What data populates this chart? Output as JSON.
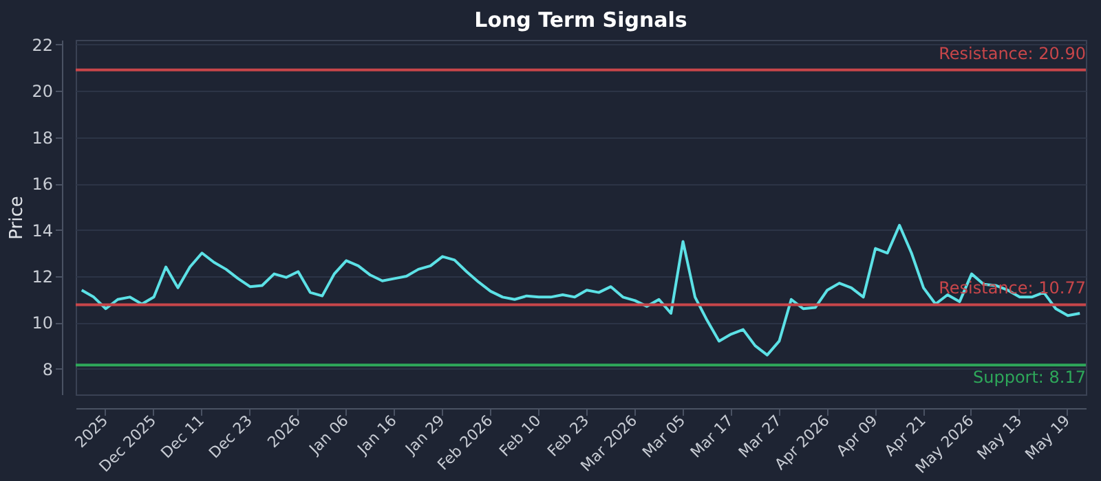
{
  "chart_data": {
    "type": "line",
    "title": "Long Term Signals",
    "ylabel": "Price",
    "categories": [
      null,
      null,
      "2025",
      null,
      null,
      null,
      "Dec 2025",
      null,
      null,
      null,
      "Dec 11",
      null,
      null,
      null,
      "Dec 23",
      null,
      null,
      null,
      "2026",
      null,
      null,
      null,
      "Jan 06",
      null,
      null,
      null,
      "Jan 16",
      null,
      null,
      null,
      "Jan 29",
      null,
      null,
      null,
      "Feb 2026",
      null,
      null,
      null,
      "Feb 10",
      null,
      null,
      null,
      "Feb 23",
      null,
      null,
      null,
      "Mar 2026",
      null,
      null,
      null,
      "Mar 05",
      null,
      null,
      null,
      "Mar 17",
      null,
      null,
      null,
      "Mar 27",
      null,
      null,
      null,
      "Apr 2026",
      null,
      null,
      null,
      "Apr 09",
      null,
      null,
      null,
      "Apr 21",
      null,
      null,
      null,
      "May 2026",
      null,
      null,
      null,
      "May 13",
      null,
      null,
      null,
      "May 19",
      null
    ],
    "series": [
      {
        "color": "#5ce1e6",
        "values": [
          11.4,
          11.1,
          10.6,
          11.0,
          11.1,
          10.8,
          11.1,
          12.4,
          11.5,
          12.4,
          13.0,
          12.6,
          12.3,
          11.9,
          11.55,
          11.6,
          12.1,
          11.95,
          12.2,
          11.3,
          11.15,
          12.1,
          12.67,
          12.45,
          12.05,
          11.8,
          11.9,
          12.0,
          12.3,
          12.45,
          12.85,
          12.7,
          12.2,
          11.75,
          11.35,
          11.1,
          11.0,
          11.15,
          11.1,
          11.1,
          11.2,
          11.1,
          11.4,
          11.3,
          11.55,
          11.1,
          10.95,
          10.7,
          11.0,
          10.4,
          13.5,
          11.1,
          10.1,
          9.2,
          9.5,
          9.7,
          9.0,
          8.6,
          9.2,
          11.0,
          10.6,
          10.65,
          11.4,
          11.7,
          11.5,
          11.1,
          13.2,
          13.0,
          14.2,
          13.0,
          11.5,
          10.8,
          11.2,
          10.9,
          12.1,
          11.65,
          11.6,
          11.4,
          11.1,
          11.1,
          11.3,
          10.6,
          10.3,
          10.4
        ]
      }
    ],
    "ylim": [
      6.9,
      22.2
    ],
    "yticks": [
      8,
      10,
      12,
      14,
      16,
      18,
      20,
      22
    ],
    "grid": "y",
    "marker": "none",
    "line_style": "solid",
    "ref_lines": [
      {
        "axis": "y",
        "value": 20.9,
        "label": "Resistance: 20.90",
        "color": "#c8464a"
      },
      {
        "axis": "y",
        "value": 10.77,
        "label": "Resistance: 10.77",
        "color": "#c8464a"
      },
      {
        "axis": "y",
        "value": 8.17,
        "label": "Support: 8.17",
        "color": "#2ea85a"
      }
    ]
  }
}
